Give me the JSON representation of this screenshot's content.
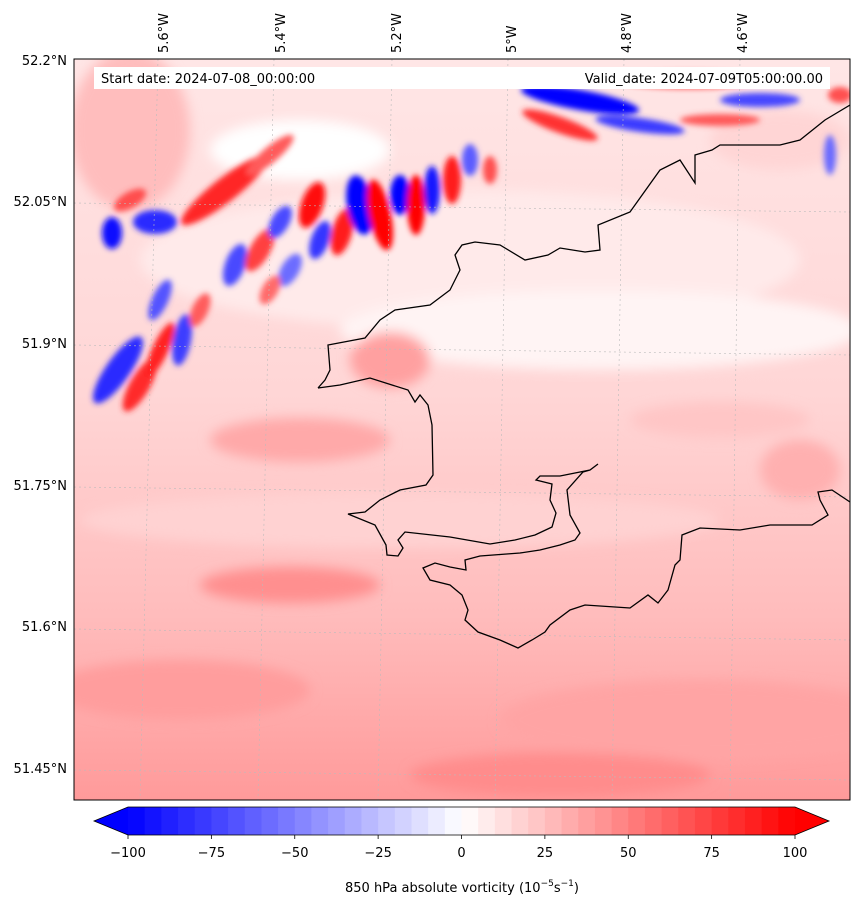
{
  "map": {
    "banner": {
      "start_label": "Start date: 2024-07-08_00:00:00",
      "valid_label": "Valid_date: 2024-07-09T05:00:00.00"
    },
    "lon_ticks": [
      "5.6°W",
      "5.4°W",
      "5.2°W",
      "5°W",
      "4.8°W",
      "4.6°W"
    ],
    "lat_ticks": [
      "52.2°N",
      "52.05°N",
      "51.9°N",
      "51.75°N",
      "51.6°N",
      "51.45°N"
    ],
    "lon_range": [
      -5.75,
      -4.42
    ],
    "lat_range": [
      51.43,
      52.2
    ],
    "field": "850 hPa absolute vorticity",
    "coastline_color": "#000000",
    "gridlines": true
  },
  "colorbar": {
    "ticks": [
      "−100",
      "−75",
      "−50",
      "−25",
      "0",
      "25",
      "50",
      "75",
      "100"
    ],
    "label_prefix": "850 hPa absolute vorticity (10",
    "label_exp1": "−5",
    "label_mid": "s",
    "label_exp2": "−1",
    "label_suffix": ")",
    "vmin": -100,
    "vmax": 100,
    "extend": "both",
    "cmap": "bwr",
    "color_min": "#0000ff",
    "color_mid": "#ffffff",
    "color_max": "#ff0000"
  }
}
